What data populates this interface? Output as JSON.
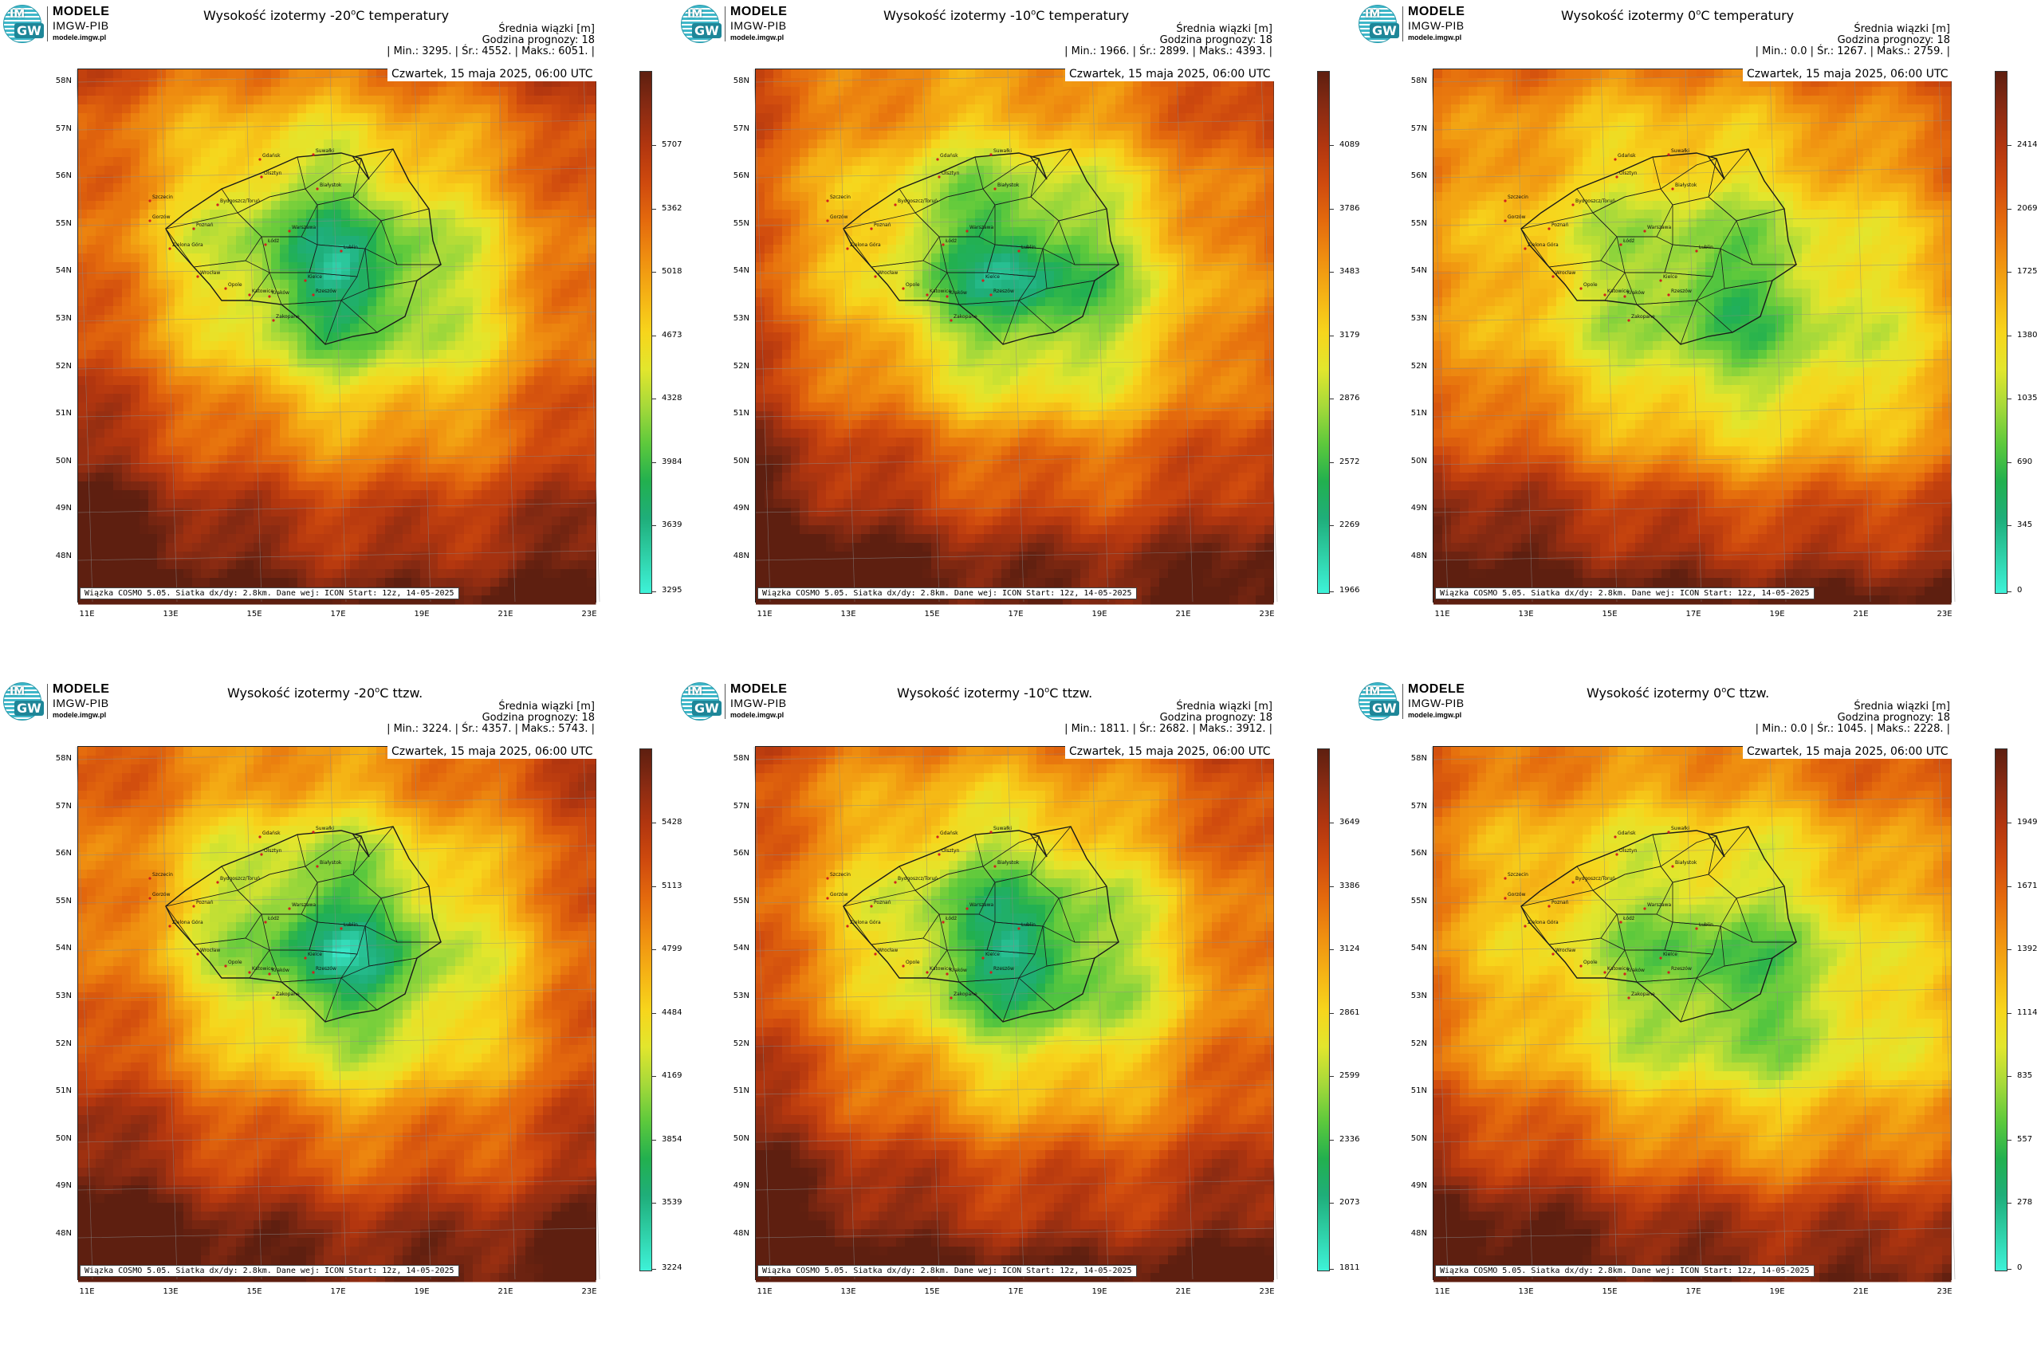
{
  "logo": {
    "line1": "MODELE",
    "line2": "IMGW-PIB",
    "line3": "modele.imgw.pl",
    "mark_top": "IM",
    "mark_bottom": "GW"
  },
  "common": {
    "stats_header": "Średnia wiązki [m]",
    "forecast_hour": "Godzina prognozy: 18",
    "min_label": "| Min.:",
    "avg_label": "| Śr.:",
    "max_label": "| Maks.:",
    "end_bar": "|",
    "date": "Czwartek, 15 maja 2025, 06:00 UTC",
    "footer": "Wiązka COSMO 5.05. Siatka dx/dy: 2.8km. Dane wej: ICON Start: 12z, 14-05-2025",
    "lat_labels": [
      "58N",
      "57N",
      "56N",
      "55N",
      "54N",
      "53N",
      "52N",
      "51N",
      "50N",
      "49N",
      "48N"
    ],
    "lon_labels": [
      "11E",
      "13E",
      "15E",
      "17E",
      "19E",
      "21E",
      "23E"
    ],
    "cities": [
      "Gdańsk",
      "Suwałki",
      "Olsztyn",
      "Szczecin",
      "Białystok",
      "Bydgoszcz/Toruń",
      "Gorzów",
      "Poznań",
      "Warszawa",
      "Zielona Góra",
      "Łódź",
      "Lublin",
      "Wrocław",
      "Kielce",
      "Opole",
      "Rzeszów",
      "Katowice",
      "Kraków",
      "Zakopane"
    ]
  },
  "colors": {
    "scale": [
      "#3ef2d8",
      "#2fd0a8",
      "#1fae7a",
      "#22b04f",
      "#5dc93c",
      "#a5d93a",
      "#e2e62d",
      "#f7d51c",
      "#f5b215",
      "#ef8e10",
      "#e46a0d",
      "#cf4a0e",
      "#b2360f",
      "#8a2b12",
      "#5e1f10"
    ],
    "border": "#1a1a1a",
    "city_dot": "#d02020"
  },
  "panels": [
    {
      "title_pre": "Wysokość izotermy -20",
      "title_sup": "o",
      "title_post": "C temperatury",
      "min": "3295.",
      "avg": "4552.",
      "max": "6051.",
      "colorbar_ticks": [
        "5707",
        "5362",
        "5018",
        "4673",
        "4328",
        "3984",
        "3639",
        "3295"
      ],
      "pattern": "blob_strong"
    },
    {
      "title_pre": "Wysokość izotermy -10",
      "title_sup": "o",
      "title_post": "C temperatury",
      "min": "1966.",
      "avg": "2899.",
      "max": "4393.",
      "colorbar_ticks": [
        "4089",
        "3786",
        "3483",
        "3179",
        "2876",
        "2572",
        "2269",
        "1966"
      ],
      "pattern": "blob_strong"
    },
    {
      "title_pre": "Wysokość izotermy 0",
      "title_sup": "o",
      "title_post": "C temperatury",
      "min": "0.0",
      "avg": "1267.",
      "max": "2759.",
      "colorbar_ticks": [
        "2414",
        "2069",
        "1725",
        "1380",
        "1035",
        "690",
        "345",
        "0"
      ],
      "pattern": "blob_weak"
    },
    {
      "title_pre": "Wysokość izotermy -20",
      "title_sup": "o",
      "title_post": "C ttzw.",
      "min": "3224.",
      "avg": "4357.",
      "max": "5743.",
      "colorbar_ticks": [
        "5428",
        "5113",
        "4799",
        "4484",
        "4169",
        "3854",
        "3539",
        "3224"
      ],
      "pattern": "blob_strong"
    },
    {
      "title_pre": "Wysokość izotermy -10",
      "title_sup": "o",
      "title_post": "C ttzw.",
      "min": "1811.",
      "avg": "2682.",
      "max": "3912.",
      "colorbar_ticks": [
        "3649",
        "3386",
        "3124",
        "2861",
        "2599",
        "2336",
        "2073",
        "1811"
      ],
      "pattern": "blob_strong"
    },
    {
      "title_pre": "Wysokość izotermy 0",
      "title_sup": "o",
      "title_post": "C ttzw.",
      "min": "0.0",
      "avg": "1045.",
      "max": "2228.",
      "colorbar_ticks": [
        "1949",
        "1671",
        "1392",
        "1114",
        "835",
        "557",
        "278",
        "0"
      ],
      "pattern": "blob_weak"
    }
  ]
}
